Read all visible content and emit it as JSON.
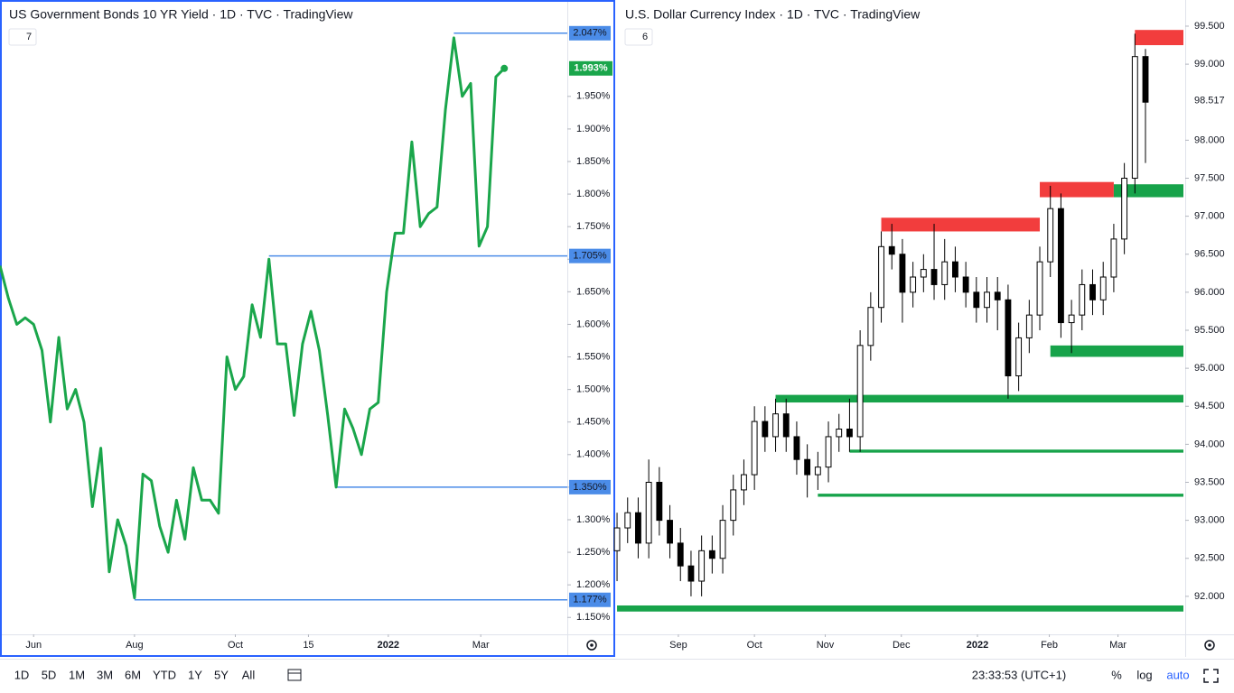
{
  "toolbar": {
    "ranges": [
      "1D",
      "5D",
      "1M",
      "3M",
      "6M",
      "YTD",
      "1Y",
      "5Y",
      "All"
    ],
    "time": "23:33:53 (UTC+1)",
    "percent": "%",
    "log": "log",
    "auto": "auto"
  },
  "chart_data": [
    {
      "type": "line",
      "title": "US Government Bonds 10 YR Yield · 1D · TVC · TradingView",
      "badge": "7",
      "color": "#1aa64b",
      "values": [
        1.69,
        1.64,
        1.6,
        1.61,
        1.6,
        1.56,
        1.45,
        1.58,
        1.47,
        1.5,
        1.45,
        1.32,
        1.41,
        1.22,
        1.3,
        1.26,
        1.18,
        1.37,
        1.36,
        1.29,
        1.25,
        1.33,
        1.27,
        1.38,
        1.33,
        1.33,
        1.31,
        1.55,
        1.5,
        1.52,
        1.63,
        1.58,
        1.7,
        1.57,
        1.57,
        1.46,
        1.57,
        1.62,
        1.56,
        1.46,
        1.35,
        1.47,
        1.44,
        1.4,
        1.47,
        1.48,
        1.65,
        1.74,
        1.74,
        1.88,
        1.75,
        1.77,
        1.78,
        1.93,
        2.04,
        1.95,
        1.97,
        1.72,
        1.75,
        1.98,
        1.993
      ],
      "xlim": [
        0,
        67.5
      ],
      "xticks": [
        {
          "value": 4,
          "label": "Jun"
        },
        {
          "value": 16,
          "label": "Aug"
        },
        {
          "value": 28,
          "label": "Oct"
        },
        {
          "value": 36.7,
          "label": "15"
        },
        {
          "value": 46.2,
          "label": "2022"
        },
        {
          "value": 57.2,
          "label": "Mar"
        }
      ],
      "ylim": [
        1.124,
        2.098
      ],
      "yticks": [
        {
          "value": 1.15,
          "label": "1.150%"
        },
        {
          "value": 1.2,
          "label": "1.200%"
        },
        {
          "value": 1.25,
          "label": "1.250%"
        },
        {
          "value": 1.3,
          "label": "1.300%"
        },
        {
          "value": 1.35,
          "label": "1.350%"
        },
        {
          "value": 1.4,
          "label": "1.400%"
        },
        {
          "value": 1.45,
          "label": "1.450%"
        },
        {
          "value": 1.5,
          "label": "1.500%"
        },
        {
          "value": 1.55,
          "label": "1.550%"
        },
        {
          "value": 1.6,
          "label": "1.600%"
        },
        {
          "value": 1.65,
          "label": "1.650%"
        },
        {
          "value": 1.7,
          "label": "1.700%"
        },
        {
          "value": 1.75,
          "label": "1.750%"
        },
        {
          "value": 1.8,
          "label": "1.800%"
        },
        {
          "value": 1.85,
          "label": "1.850%"
        },
        {
          "value": 1.9,
          "label": "1.900%"
        },
        {
          "value": 1.95,
          "label": "1.950%"
        }
      ],
      "levels": [
        {
          "value": 2.047,
          "label": "2.047%"
        },
        {
          "value": 1.705,
          "label": "1.705%"
        },
        {
          "value": 1.35,
          "label": "1.350%"
        },
        {
          "value": 1.177,
          "label": "1.177%"
        }
      ],
      "level_color": "#4b8ce8",
      "price_label": {
        "value": 1.993,
        "label": "1.993%"
      }
    },
    {
      "type": "candlestick",
      "title": "U.S. Dollar Currency Index · 1D · TVC · TradingView",
      "badge": "6",
      "open": [
        92.6,
        92.9,
        93.1,
        92.7,
        93.5,
        93.0,
        92.7,
        92.4,
        92.2,
        92.6,
        92.5,
        93.0,
        93.4,
        93.6,
        94.3,
        94.1,
        94.4,
        94.1,
        93.8,
        93.6,
        93.7,
        94.1,
        94.2,
        94.1,
        95.3,
        95.8,
        96.6,
        96.5,
        96.0,
        96.2,
        96.3,
        96.1,
        96.4,
        96.2,
        96.0,
        95.8,
        96.0,
        95.9,
        94.9,
        95.4,
        95.7,
        96.4,
        97.1,
        95.6,
        95.7,
        96.1,
        95.9,
        96.2,
        96.7,
        97.5,
        99.1
      ],
      "high": [
        93.1,
        93.3,
        93.3,
        93.8,
        93.7,
        93.2,
        92.9,
        92.6,
        92.8,
        92.8,
        93.2,
        93.6,
        93.8,
        94.5,
        94.5,
        94.6,
        94.6,
        94.3,
        94.0,
        93.9,
        94.3,
        94.4,
        94.6,
        95.5,
        96.0,
        96.8,
        96.9,
        96.7,
        96.4,
        96.5,
        96.9,
        96.7,
        96.6,
        96.4,
        96.2,
        96.2,
        96.2,
        96.1,
        95.6,
        95.9,
        96.6,
        97.4,
        97.3,
        95.9,
        96.3,
        96.3,
        96.4,
        96.9,
        97.7,
        99.4,
        99.2
      ],
      "low": [
        92.2,
        92.7,
        92.5,
        92.5,
        92.8,
        92.5,
        92.2,
        92.0,
        92.0,
        92.3,
        92.3,
        92.8,
        93.2,
        93.4,
        93.9,
        93.9,
        93.9,
        93.6,
        93.3,
        93.4,
        93.5,
        93.9,
        93.9,
        93.9,
        95.1,
        95.6,
        96.3,
        95.6,
        95.8,
        96.0,
        95.9,
        95.9,
        96.0,
        95.8,
        95.6,
        95.6,
        95.5,
        94.6,
        94.7,
        95.2,
        95.5,
        96.2,
        95.4,
        95.2,
        95.5,
        95.7,
        95.7,
        96.0,
        96.5,
        97.3,
        97.7
      ],
      "close": [
        92.9,
        93.1,
        92.7,
        93.5,
        93.0,
        92.7,
        92.4,
        92.2,
        92.6,
        92.5,
        93.0,
        93.4,
        93.6,
        94.3,
        94.1,
        94.4,
        94.1,
        93.8,
        93.6,
        93.7,
        94.1,
        94.2,
        94.1,
        95.3,
        95.8,
        96.6,
        96.5,
        96.0,
        96.2,
        96.3,
        96.1,
        96.4,
        96.2,
        96.0,
        95.8,
        96.0,
        95.9,
        94.9,
        95.4,
        95.7,
        96.4,
        97.1,
        95.6,
        95.7,
        96.1,
        95.9,
        96.2,
        96.7,
        97.5,
        99.1,
        98.5
      ],
      "up_color": "#ffffff",
      "down_color": "#000000",
      "xlim": [
        -0.09,
        53.76
      ],
      "xticks": [
        {
          "value": 5.8,
          "label": "Sep"
        },
        {
          "value": 13,
          "label": "Oct"
        },
        {
          "value": 19.7,
          "label": "Nov"
        },
        {
          "value": 26.9,
          "label": "Dec"
        },
        {
          "value": 34.1,
          "label": "2022"
        },
        {
          "value": 40.9,
          "label": "Feb"
        },
        {
          "value": 47.4,
          "label": "Mar"
        }
      ],
      "ylim": [
        91.5,
        99.844
      ],
      "yticks": [
        {
          "value": 92,
          "label": "92.000"
        },
        {
          "value": 92.5,
          "label": "92.500"
        },
        {
          "value": 93,
          "label": "93.000"
        },
        {
          "value": 93.5,
          "label": "93.500"
        },
        {
          "value": 94,
          "label": "94.000"
        },
        {
          "value": 94.5,
          "label": "94.500"
        },
        {
          "value": 95,
          "label": "95.000"
        },
        {
          "value": 95.5,
          "label": "95.500"
        },
        {
          "value": 96,
          "label": "96.000"
        },
        {
          "value": 96.5,
          "label": "96.500"
        },
        {
          "value": 97,
          "label": "97.000"
        },
        {
          "value": 97.5,
          "label": "97.500"
        },
        {
          "value": 98,
          "label": "98.000"
        },
        {
          "value": 99,
          "label": "99.000"
        },
        {
          "value": 99.5,
          "label": "99.500"
        }
      ],
      "zones": [
        {
          "low": 99.25,
          "high": 99.45,
          "color": "#f23d3d",
          "from": 49
        },
        {
          "low": 97.25,
          "high": 97.45,
          "color": "#f23d3d",
          "from": 40,
          "to": 47
        },
        {
          "low": 97.25,
          "high": 97.42,
          "color": "#17a34a",
          "from": 47
        },
        {
          "low": 96.8,
          "high": 96.98,
          "color": "#f23d3d",
          "from": 25,
          "to": 40
        },
        {
          "low": 95.15,
          "high": 95.3,
          "color": "#17a34a",
          "from": 41
        },
        {
          "low": 94.55,
          "high": 94.65,
          "color": "#17a34a",
          "from": 15
        },
        {
          "low": 93.89,
          "high": 93.93,
          "color": "#17a34a",
          "from": 22
        },
        {
          "low": 93.31,
          "high": 93.35,
          "color": "#17a34a",
          "from": 19
        },
        {
          "low": 91.8,
          "high": 91.88,
          "color": "#17a34a",
          "from": 0
        }
      ],
      "price_label": {
        "value": 98.517,
        "label": "98.517"
      }
    }
  ]
}
